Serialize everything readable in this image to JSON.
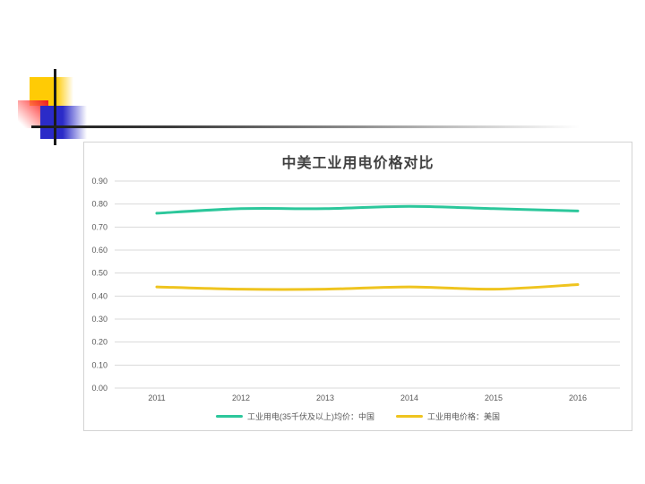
{
  "decoration": {
    "colors": {
      "yellow": "#FFCB05",
      "red": "#EE2222",
      "blue": "#2B2BC8",
      "line": "#1A1A1A"
    }
  },
  "chart_data": {
    "type": "line",
    "title": "中美工业用电价格对比",
    "x": [
      "2011",
      "2012",
      "2013",
      "2014",
      "2015",
      "2016"
    ],
    "series": [
      {
        "name": "工业用电(35千伏及以上)均价：中国",
        "color": "#2CC79B",
        "values": [
          0.76,
          0.78,
          0.78,
          0.79,
          0.78,
          0.77
        ]
      },
      {
        "name": "工业用电价格：美国",
        "color": "#EFC41F",
        "values": [
          0.44,
          0.43,
          0.43,
          0.44,
          0.43,
          0.45
        ]
      }
    ],
    "xlabel": "",
    "ylabel": "",
    "ylim": [
      0.0,
      0.9
    ],
    "yticks": [
      "0.00",
      "0.10",
      "0.20",
      "0.30",
      "0.40",
      "0.50",
      "0.60",
      "0.70",
      "0.80",
      "0.90"
    ],
    "grid": true,
    "legend_position": "bottom"
  }
}
